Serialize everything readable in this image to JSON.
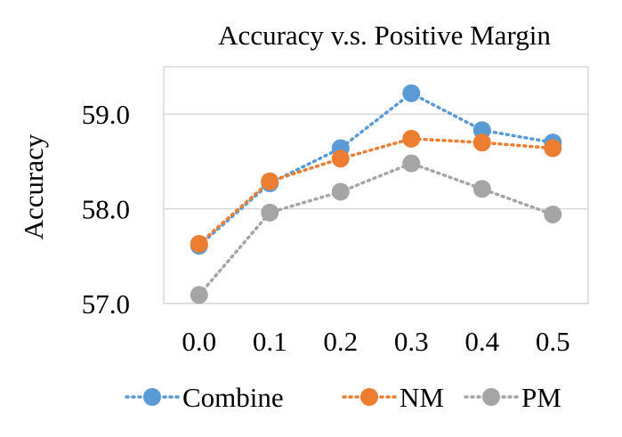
{
  "chart_data": {
    "type": "line",
    "title": "Accuracy v.s. Positive Margin",
    "xlabel": "",
    "ylabel": "Accuracy",
    "categories": [
      "0.0",
      "0.1",
      "0.2",
      "0.3",
      "0.4",
      "0.5"
    ],
    "ylim": [
      57.0,
      59.5
    ],
    "yticks": [
      "57.0",
      "58.0",
      "59.0"
    ],
    "grid": true,
    "legend_position": "bottom",
    "series": [
      {
        "name": "Combine",
        "color": "#5b9bd5",
        "values": [
          57.61,
          58.27,
          58.64,
          59.22,
          58.83,
          58.7
        ]
      },
      {
        "name": "NM",
        "color": "#ed7d31",
        "values": [
          57.63,
          58.29,
          58.53,
          58.74,
          58.7,
          58.64
        ]
      },
      {
        "name": "PM",
        "color": "#a5a5a5",
        "values": [
          57.09,
          57.96,
          58.18,
          58.48,
          58.21,
          57.94
        ]
      }
    ]
  }
}
